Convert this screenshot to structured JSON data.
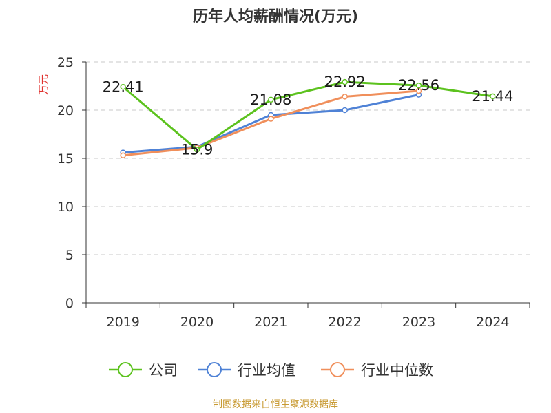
{
  "title": "历年人均薪酬情况(万元)",
  "source": "制图数据来自恒生聚源数据库",
  "colors": {
    "company": "#5cc21e",
    "industry_avg": "#4f82d6",
    "industry_median": "#f08f5b",
    "unit_label": "#e0322f",
    "source_text": "#c89a32",
    "axis": "#333333",
    "grid": "#c8c8c8"
  },
  "chart_data": {
    "type": "line",
    "title": "历年人均薪酬情况(万元)",
    "ylabel": "万元",
    "xlabel": "",
    "categories": [
      "2019",
      "2020",
      "2021",
      "2022",
      "2023",
      "2024"
    ],
    "ylim": [
      0,
      25
    ],
    "yticks": [
      0,
      5,
      10,
      15,
      20,
      25
    ],
    "grid": true,
    "legend_position": "bottom",
    "series": [
      {
        "key": "company",
        "name": "公司",
        "values": [
          22.41,
          15.9,
          21.08,
          22.92,
          22.56,
          21.44
        ],
        "labels": [
          "22.41",
          "15.9",
          "21.08",
          "22.92",
          "22.56",
          "21.44"
        ]
      },
      {
        "key": "industry_avg",
        "name": "行业均值",
        "values": [
          15.6,
          16.2,
          19.5,
          20.0,
          21.6,
          null
        ]
      },
      {
        "key": "industry_median",
        "name": "行业中位数",
        "values": [
          15.3,
          16.1,
          19.1,
          21.4,
          22.0,
          null
        ]
      }
    ]
  }
}
